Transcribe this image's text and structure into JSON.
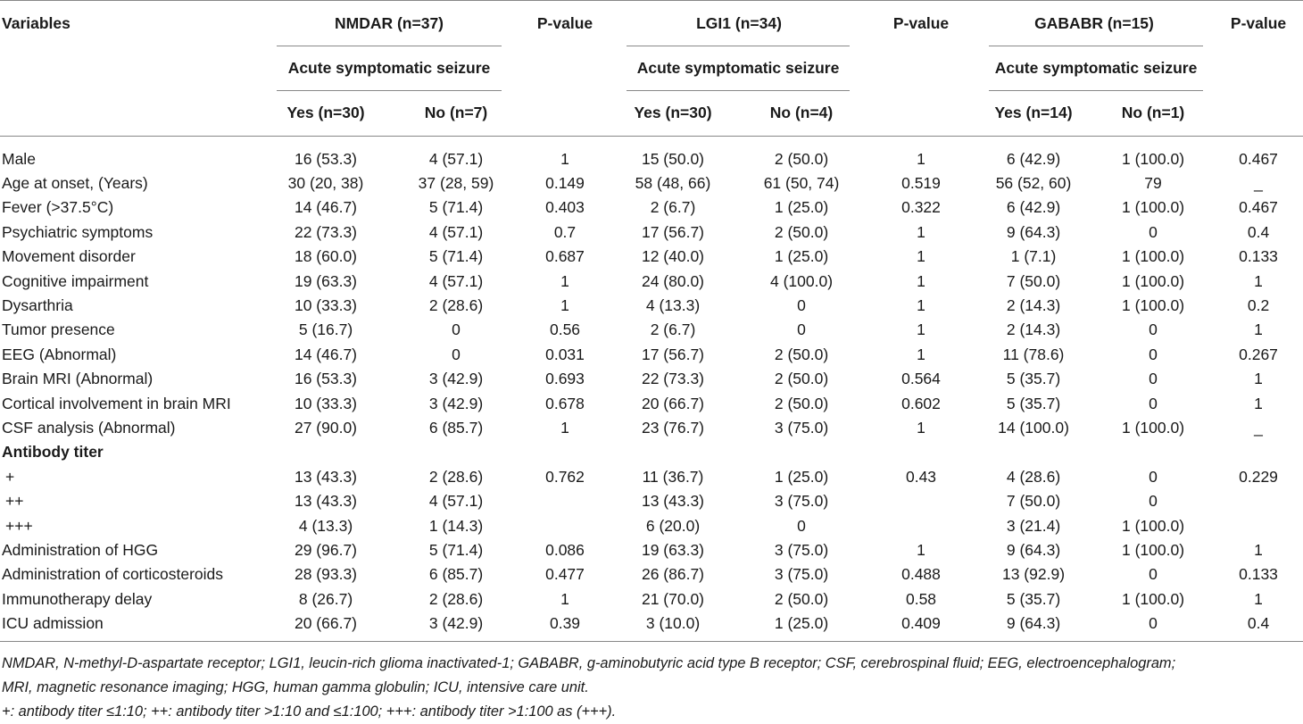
{
  "header": {
    "variables": "Variables",
    "groups": [
      {
        "name": "NMDAR (n=37)",
        "sub": "Acute symptomatic seizure",
        "yes": "Yes (n=30)",
        "no": "No (n=7)",
        "p": "P-value"
      },
      {
        "name": "LGI1 (n=34)",
        "sub": "Acute symptomatic seizure",
        "yes": "Yes (n=30)",
        "no": "No (n=4)",
        "p": "P-value"
      },
      {
        "name": "GABABR (n=15)",
        "sub": "Acute symptomatic seizure",
        "yes": "Yes (n=14)",
        "no": "No (n=1)",
        "p": "P-value"
      }
    ]
  },
  "rows": [
    {
      "label": "Male",
      "v": [
        "16 (53.3)",
        "4 (57.1)",
        "1",
        "15 (50.0)",
        "2 (50.0)",
        "1",
        "6 (42.9)",
        "1 (100.0)",
        "0.467"
      ]
    },
    {
      "label": "Age at onset, (Years)",
      "v": [
        "30 (20, 38)",
        "37 (28, 59)",
        "0.149",
        "58 (48, 66)",
        "61 (50, 74)",
        "0.519",
        "56 (52, 60)",
        "79",
        "_"
      ]
    },
    {
      "label": "Fever (>37.5°C)",
      "v": [
        "14 (46.7)",
        "5 (71.4)",
        "0.403",
        "2 (6.7)",
        "1 (25.0)",
        "0.322",
        "6 (42.9)",
        "1 (100.0)",
        "0.467"
      ]
    },
    {
      "label": "Psychiatric symptoms",
      "v": [
        "22 (73.3)",
        "4 (57.1)",
        "0.7",
        "17 (56.7)",
        "2 (50.0)",
        "1",
        "9 (64.3)",
        "0",
        "0.4"
      ]
    },
    {
      "label": "Movement disorder",
      "v": [
        "18 (60.0)",
        "5 (71.4)",
        "0.687",
        "12 (40.0)",
        "1 (25.0)",
        "1",
        "1 (7.1)",
        "1 (100.0)",
        "0.133"
      ]
    },
    {
      "label": "Cognitive impairment",
      "v": [
        "19 (63.3)",
        "4 (57.1)",
        "1",
        "24 (80.0)",
        "4 (100.0)",
        "1",
        "7 (50.0)",
        "1 (100.0)",
        "1"
      ]
    },
    {
      "label": "Dysarthria",
      "v": [
        "10 (33.3)",
        "2 (28.6)",
        "1",
        "4 (13.3)",
        "0",
        "1",
        "2 (14.3)",
        "1 (100.0)",
        "0.2"
      ]
    },
    {
      "label": "Tumor presence",
      "v": [
        "5 (16.7)",
        "0",
        "0.56",
        "2 (6.7)",
        "0",
        "1",
        "2 (14.3)",
        "0",
        "1"
      ]
    },
    {
      "label": "EEG (Abnormal)",
      "v": [
        "14 (46.7)",
        "0",
        "0.031",
        "17 (56.7)",
        "2 (50.0)",
        "1",
        "11 (78.6)",
        "0",
        "0.267"
      ]
    },
    {
      "label": "Brain MRI (Abnormal)",
      "v": [
        "16 (53.3)",
        "3 (42.9)",
        "0.693",
        "22 (73.3)",
        "2 (50.0)",
        "0.564",
        "5 (35.7)",
        "0",
        "1"
      ]
    },
    {
      "label": "Cortical involvement in brain MRI",
      "v": [
        "10 (33.3)",
        "3 (42.9)",
        "0.678",
        "20 (66.7)",
        "2 (50.0)",
        "0.602",
        "5 (35.7)",
        "0",
        "1"
      ]
    },
    {
      "label": "CSF analysis (Abnormal)",
      "v": [
        "27 (90.0)",
        "6 (85.7)",
        "1",
        "23 (76.7)",
        "3 (75.0)",
        "1",
        "14 (100.0)",
        "1 (100.0)",
        "_"
      ]
    },
    {
      "label": "Antibody titer",
      "section": true,
      "v": [
        "",
        "",
        "",
        "",
        "",
        "",
        "",
        "",
        ""
      ]
    },
    {
      "label": "+",
      "indent": true,
      "v": [
        "13 (43.3)",
        "2 (28.6)",
        "0.762",
        "11 (36.7)",
        "1 (25.0)",
        "0.43",
        "4 (28.6)",
        "0",
        "0.229"
      ]
    },
    {
      "label": "++",
      "indent": true,
      "v": [
        "13 (43.3)",
        "4 (57.1)",
        "",
        "13 (43.3)",
        "3 (75.0)",
        "",
        "7 (50.0)",
        "0",
        ""
      ]
    },
    {
      "label": "+++",
      "indent": true,
      "v": [
        "4 (13.3)",
        "1 (14.3)",
        "",
        "6 (20.0)",
        "0",
        "",
        "3 (21.4)",
        "1 (100.0)",
        ""
      ]
    },
    {
      "label": "Administration of HGG",
      "v": [
        "29 (96.7)",
        "5 (71.4)",
        "0.086",
        "19 (63.3)",
        "3 (75.0)",
        "1",
        "9 (64.3)",
        "1 (100.0)",
        "1"
      ]
    },
    {
      "label": "Administration of corticosteroids",
      "v": [
        "28 (93.3)",
        "6 (85.7)",
        "0.477",
        "26 (86.7)",
        "3 (75.0)",
        "0.488",
        "13 (92.9)",
        "0",
        "0.133"
      ]
    },
    {
      "label": "Immunotherapy delay",
      "v": [
        "8 (26.7)",
        "2 (28.6)",
        "1",
        "21 (70.0)",
        "2 (50.0)",
        "0.58",
        "5 (35.7)",
        "1 (100.0)",
        "1"
      ]
    },
    {
      "label": "ICU admission",
      "v": [
        "20 (66.7)",
        "3 (42.9)",
        "0.39",
        "3 (10.0)",
        "1 (25.0)",
        "0.409",
        "9 (64.3)",
        "0",
        "0.4"
      ]
    }
  ],
  "notes": {
    "line1": "NMDAR, N-methyl-D-aspartate receptor; LGI1, leucin-rich glioma inactivated-1; GABABR, g-aminobutyric acid type B receptor; CSF, cerebrospinal fluid; EEG, electroencephalogram;",
    "line2": "MRI, magnetic resonance imaging; HGG, human gamma globulin; ICU, intensive care unit.",
    "line3": "+: antibody titer ≤1:10; ++: antibody titer >1:10 and ≤1:100; +++: antibody titer >1:100 as (+++)."
  }
}
